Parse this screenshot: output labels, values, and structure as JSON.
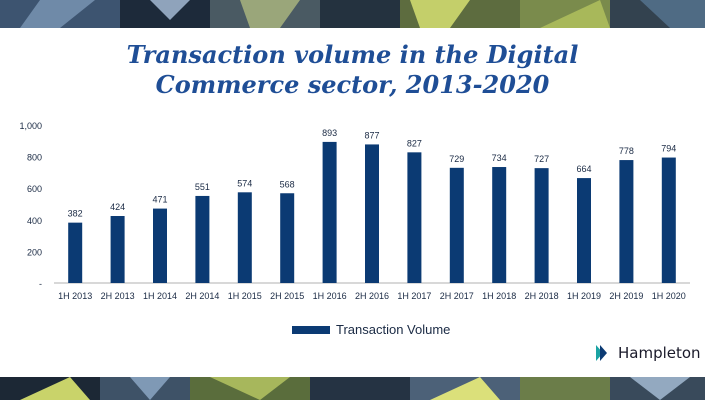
{
  "chart_data": {
    "type": "bar",
    "title": "Transaction volume in the Digital Commerce sector, 2013-2020",
    "title_lines": [
      "Transaction volume in the Digital",
      "Commerce sector, 2013-2020"
    ],
    "categories": [
      "1H 2013",
      "2H 2013",
      "1H 2014",
      "2H 2014",
      "1H 2015",
      "2H 2015",
      "1H 2016",
      "2H 2016",
      "1H 2017",
      "2H 2017",
      "1H 2018",
      "2H 2018",
      "1H 2019",
      "2H 2019",
      "1H 2020"
    ],
    "series": [
      {
        "name": "Transaction Volume",
        "values": [
          382,
          424,
          471,
          551,
          574,
          568,
          893,
          877,
          827,
          729,
          734,
          727,
          664,
          778,
          794
        ],
        "value_labels": [
          "382",
          "424",
          "471",
          "551",
          "574",
          "568",
          "893",
          "877",
          "827",
          "729",
          "734",
          "727",
          "664",
          "778",
          "794"
        ],
        "color": "#0b3a73"
      }
    ],
    "ylim": [
      0,
      1000
    ],
    "yticks": [
      0,
      200,
      400,
      600,
      800,
      1000
    ],
    "ytick_labels": [
      "-",
      "200",
      "400",
      "600",
      "800",
      "1,000"
    ],
    "grid": false,
    "legend_position": "bottom"
  },
  "legend": {
    "label": "Transaction Volume"
  },
  "brand": {
    "name": "Hampleton",
    "accent": "#1aa3a3"
  },
  "colors": {
    "title": "#1f4e96",
    "bar": "#0b3a73",
    "axis": "#b0b0b0",
    "text": "#1a2a44"
  }
}
